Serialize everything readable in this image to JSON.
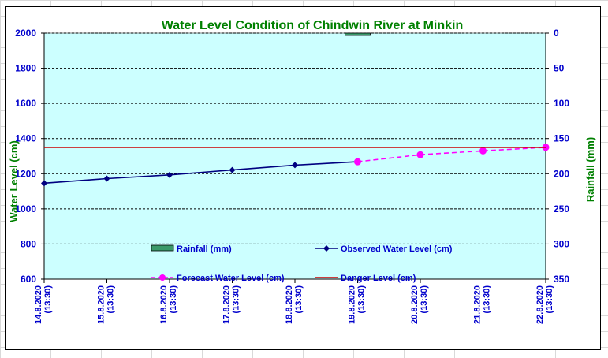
{
  "chart_data": {
    "type": "line",
    "title": "Water Level Condition  of Chindwin  River at  Minkin",
    "ylabel": "Water Level (cm)",
    "y2label": "Rainfall (mm)",
    "ylim": [
      600,
      2000
    ],
    "yticks": [
      "600",
      "800",
      "1000",
      "1200",
      "1400",
      "1600",
      "1800",
      "2000"
    ],
    "y2lim": [
      0,
      350
    ],
    "y2ticks": [
      "0",
      "50",
      "100",
      "150",
      "200",
      "250",
      "300",
      "350"
    ],
    "y2_inverted": true,
    "categories": [
      "14.8.2020\n(13:30)",
      "15.8.2020\n(13:30)",
      "16.8.2020\n(13:30)",
      "17.8.2020\n(13:30)",
      "18.8.2020\n(13:30)",
      "19.8.2020\n(13:30)",
      "20.8.2020\n(13:30)",
      "21.8.2020\n(13:30)",
      "22.8.2020\n(13:30)"
    ],
    "grid": true,
    "legend_position": "bottom-inside",
    "series": [
      {
        "name": "Rainfall (mm)",
        "kind": "bar",
        "axis": "right",
        "color": "#3a9a6a",
        "values": [
          null,
          null,
          null,
          null,
          null,
          1,
          null,
          null,
          null
        ]
      },
      {
        "name": "Observed Water Level (cm)",
        "kind": "line",
        "color": "#000080",
        "marker": "diamond",
        "values": [
          1146,
          1172,
          1193,
          1221,
          1249,
          1268,
          null,
          null,
          null
        ]
      },
      {
        "name": "Forecast Water Level (cm)",
        "kind": "dashed-line",
        "color": "#ff00ff",
        "marker": "circle",
        "values": [
          null,
          null,
          null,
          null,
          null,
          1268,
          1308,
          1330,
          1350
        ]
      },
      {
        "name": "Danger Level (cm)",
        "kind": "line",
        "color": "#cc0000",
        "values": [
          1350,
          1350,
          1350,
          1350,
          1350,
          1350,
          1350,
          1350,
          1350
        ]
      }
    ],
    "colors": {
      "plot_background": "#ccffff",
      "title": "#008000",
      "axis_labels": "#008000",
      "tick_labels": "#0000cc",
      "legend_text": "#0000cc"
    }
  }
}
